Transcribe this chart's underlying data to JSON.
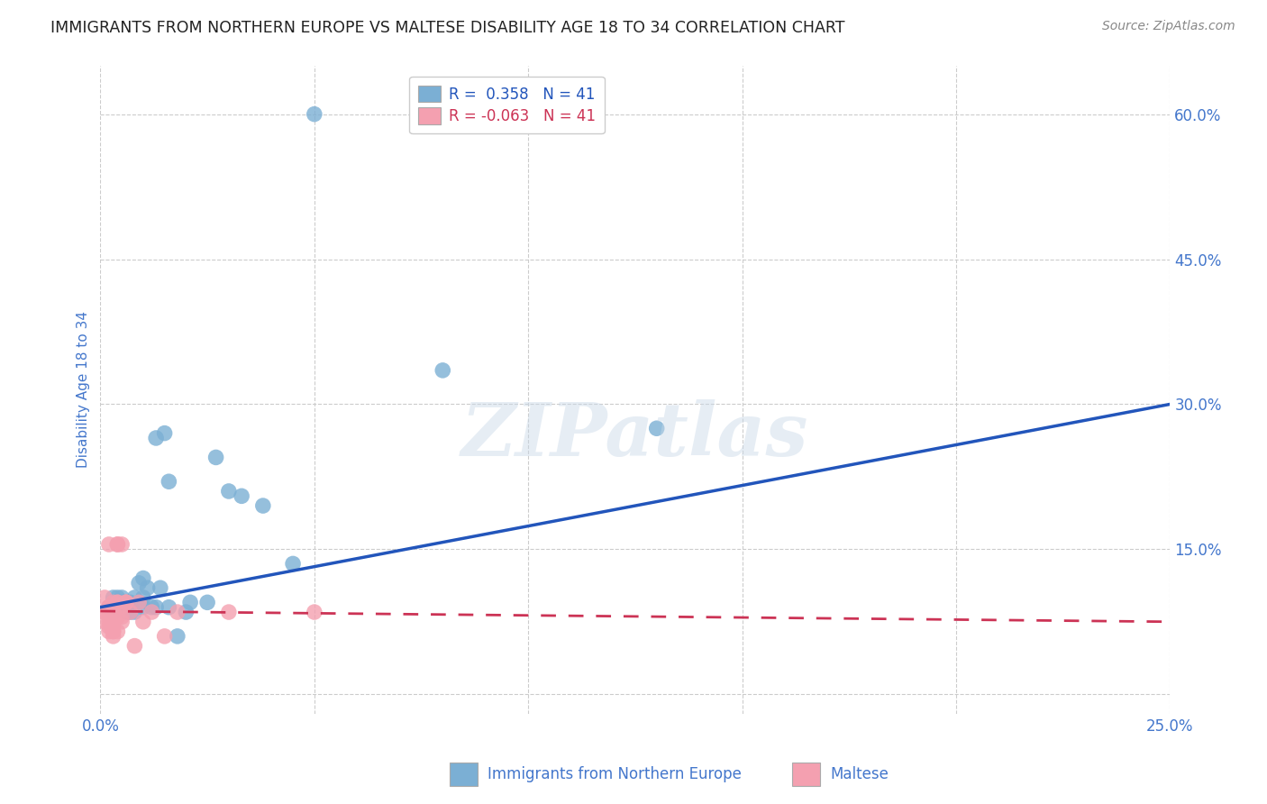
{
  "title": "IMMIGRANTS FROM NORTHERN EUROPE VS MALTESE DISABILITY AGE 18 TO 34 CORRELATION CHART",
  "source": "Source: ZipAtlas.com",
  "ylabel_label": "Disability Age 18 to 34",
  "xmin": 0.0,
  "xmax": 0.25,
  "ymin": -0.02,
  "ymax": 0.65,
  "x_ticks": [
    0.0,
    0.05,
    0.1,
    0.15,
    0.2,
    0.25
  ],
  "x_tick_labels": [
    "0.0%",
    "",
    "",
    "",
    "",
    "25.0%"
  ],
  "y_ticks": [
    0.0,
    0.15,
    0.3,
    0.45,
    0.6
  ],
  "y_tick_labels": [
    "",
    "15.0%",
    "30.0%",
    "45.0%",
    "60.0%"
  ],
  "r_blue": 0.358,
  "n_blue": 41,
  "r_pink": -0.063,
  "n_pink": 41,
  "watermark": "ZIPatlas",
  "blue_color": "#7bafd4",
  "pink_color": "#f4a0b0",
  "blue_line_color": "#2255bb",
  "pink_line_color": "#cc3355",
  "blue_scatter": [
    [
      0.002,
      0.09
    ],
    [
      0.003,
      0.1
    ],
    [
      0.003,
      0.085
    ],
    [
      0.004,
      0.095
    ],
    [
      0.004,
      0.1
    ],
    [
      0.004,
      0.09
    ],
    [
      0.005,
      0.095
    ],
    [
      0.005,
      0.09
    ],
    [
      0.005,
      0.1
    ],
    [
      0.006,
      0.085
    ],
    [
      0.006,
      0.095
    ],
    [
      0.007,
      0.085
    ],
    [
      0.007,
      0.09
    ],
    [
      0.007,
      0.095
    ],
    [
      0.008,
      0.1
    ],
    [
      0.008,
      0.085
    ],
    [
      0.009,
      0.095
    ],
    [
      0.009,
      0.115
    ],
    [
      0.01,
      0.12
    ],
    [
      0.01,
      0.1
    ],
    [
      0.01,
      0.09
    ],
    [
      0.011,
      0.11
    ],
    [
      0.012,
      0.09
    ],
    [
      0.013,
      0.265
    ],
    [
      0.013,
      0.09
    ],
    [
      0.014,
      0.11
    ],
    [
      0.015,
      0.27
    ],
    [
      0.016,
      0.22
    ],
    [
      0.016,
      0.09
    ],
    [
      0.018,
      0.06
    ],
    [
      0.02,
      0.085
    ],
    [
      0.021,
      0.095
    ],
    [
      0.025,
      0.095
    ],
    [
      0.027,
      0.245
    ],
    [
      0.03,
      0.21
    ],
    [
      0.033,
      0.205
    ],
    [
      0.038,
      0.195
    ],
    [
      0.045,
      0.135
    ],
    [
      0.05,
      0.6
    ],
    [
      0.08,
      0.335
    ],
    [
      0.13,
      0.275
    ]
  ],
  "pink_scatter": [
    [
      0.001,
      0.085
    ],
    [
      0.001,
      0.1
    ],
    [
      0.001,
      0.085
    ],
    [
      0.001,
      0.075
    ],
    [
      0.002,
      0.09
    ],
    [
      0.002,
      0.07
    ],
    [
      0.002,
      0.155
    ],
    [
      0.002,
      0.065
    ],
    [
      0.002,
      0.09
    ],
    [
      0.002,
      0.075
    ],
    [
      0.002,
      0.08
    ],
    [
      0.003,
      0.065
    ],
    [
      0.003,
      0.095
    ],
    [
      0.003,
      0.07
    ],
    [
      0.003,
      0.085
    ],
    [
      0.003,
      0.06
    ],
    [
      0.003,
      0.09
    ],
    [
      0.003,
      0.075
    ],
    [
      0.003,
      0.065
    ],
    [
      0.004,
      0.155
    ],
    [
      0.004,
      0.095
    ],
    [
      0.004,
      0.155
    ],
    [
      0.004,
      0.08
    ],
    [
      0.004,
      0.065
    ],
    [
      0.004,
      0.095
    ],
    [
      0.005,
      0.08
    ],
    [
      0.005,
      0.075
    ],
    [
      0.005,
      0.155
    ],
    [
      0.005,
      0.09
    ],
    [
      0.006,
      0.095
    ],
    [
      0.006,
      0.095
    ],
    [
      0.006,
      0.095
    ],
    [
      0.007,
      0.085
    ],
    [
      0.008,
      0.05
    ],
    [
      0.009,
      0.095
    ],
    [
      0.01,
      0.075
    ],
    [
      0.012,
      0.085
    ],
    [
      0.015,
      0.06
    ],
    [
      0.018,
      0.085
    ],
    [
      0.03,
      0.085
    ],
    [
      0.05,
      0.085
    ]
  ],
  "background_color": "#ffffff",
  "grid_color": "#cccccc",
  "title_color": "#222222",
  "axis_label_color": "#4477cc",
  "tick_label_color": "#4477cc"
}
